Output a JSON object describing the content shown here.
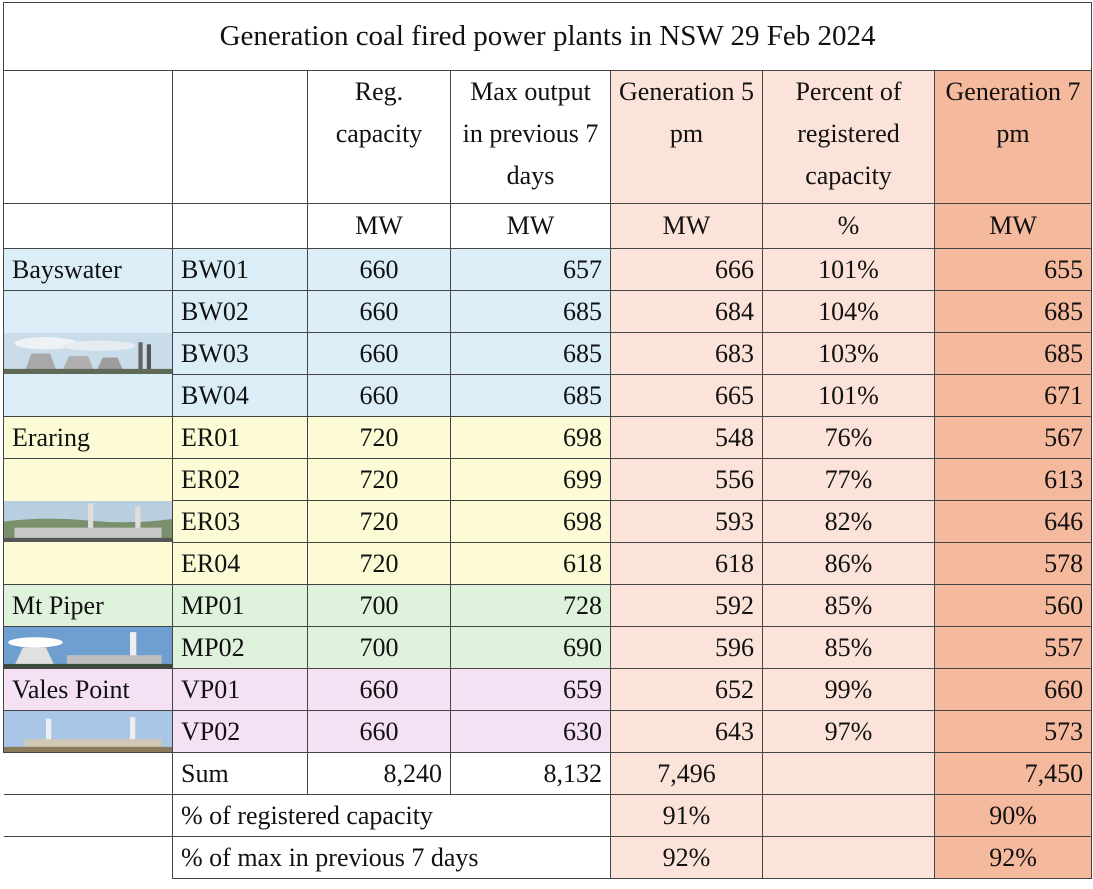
{
  "title": "Generation coal fired power plants in NSW 29 Feb 2024",
  "columns": [
    "Reg. capacity",
    "Max output in previous 7 days",
    "Generation 5 pm",
    "Percent of registered capacity",
    "Generation 7 pm"
  ],
  "units": [
    "MW",
    "MW",
    "MW",
    "%",
    "MW"
  ],
  "plants": [
    {
      "name": "Bayswater",
      "units": [
        {
          "id": "BW01",
          "cells": [
            "660",
            "657",
            "666",
            "101%",
            "655"
          ]
        },
        {
          "id": "BW02",
          "cells": [
            "660",
            "685",
            "684",
            "104%",
            "685"
          ]
        },
        {
          "id": "BW03",
          "cells": [
            "660",
            "685",
            "683",
            "103%",
            "685"
          ]
        },
        {
          "id": "BW04",
          "cells": [
            "660",
            "685",
            "665",
            "101%",
            "671"
          ]
        }
      ]
    },
    {
      "name": "Eraring",
      "units": [
        {
          "id": "ER01",
          "cells": [
            "720",
            "698",
            "548",
            "76%",
            "567"
          ]
        },
        {
          "id": "ER02",
          "cells": [
            "720",
            "699",
            "556",
            "77%",
            "613"
          ]
        },
        {
          "id": "ER03",
          "cells": [
            "720",
            "698",
            "593",
            "82%",
            "646"
          ]
        },
        {
          "id": "ER04",
          "cells": [
            "720",
            "618",
            "618",
            "86%",
            "578"
          ]
        }
      ]
    },
    {
      "name": "Mt Piper",
      "units": [
        {
          "id": "MP01",
          "cells": [
            "700",
            "728",
            "592",
            "85%",
            "560"
          ]
        },
        {
          "id": "MP02",
          "cells": [
            "700",
            "690",
            "596",
            "85%",
            "557"
          ]
        }
      ]
    },
    {
      "name": "Vales Point",
      "units": [
        {
          "id": "VP01",
          "cells": [
            "660",
            "659",
            "652",
            "99%",
            "660"
          ]
        },
        {
          "id": "VP02",
          "cells": [
            "660",
            "630",
            "643",
            "97%",
            "573"
          ]
        }
      ]
    }
  ],
  "sum": {
    "label": "Sum",
    "reg": "8,240",
    "max": "8,132",
    "gen5": "7,496",
    "gen7": "7,450"
  },
  "ratios": [
    {
      "label": "% of registered capacity",
      "gen5": "91%",
      "gen7": "90%"
    },
    {
      "label": "% of max in previous 7 days",
      "gen5": "92%",
      "gen7": "92%"
    }
  ]
}
